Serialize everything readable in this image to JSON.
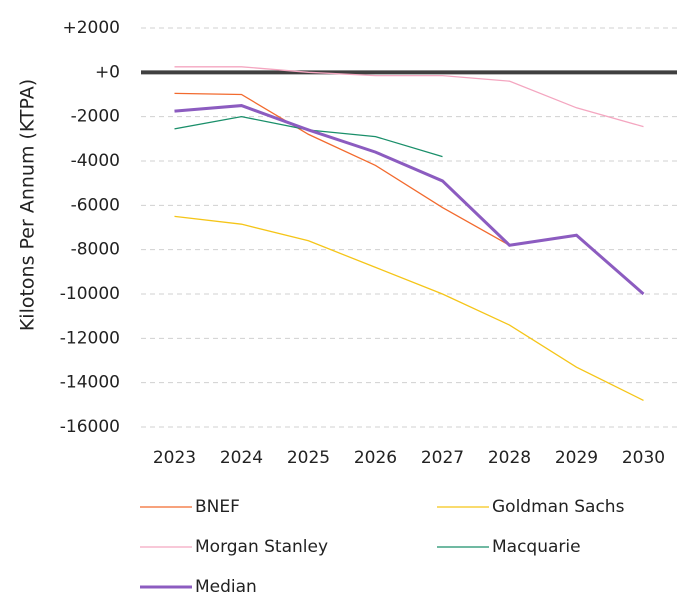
{
  "chart_data": {
    "type": "line",
    "y_label": "Kilotons Per Annum (KTPA)",
    "categories": [
      "2023",
      "2024",
      "2025",
      "2026",
      "2027",
      "2028",
      "2029",
      "2030"
    ],
    "series": [
      {
        "name": "BNEF",
        "color": "#f26a2e",
        "values": [
          -950,
          -1000,
          -2800,
          -4200,
          -6100,
          -7800,
          null,
          null
        ]
      },
      {
        "name": "Goldman Sachs",
        "color": "#f5c518",
        "values": [
          -6500,
          -6850,
          -7600,
          -8800,
          -10000,
          -11400,
          -13300,
          -14800
        ]
      },
      {
        "name": "Morgan Stanley",
        "color": "#f4a6c0",
        "values": [
          250,
          250,
          0,
          -150,
          -150,
          -400,
          -1600,
          -2450
        ]
      },
      {
        "name": "Macquarie",
        "color": "#1a8f6a",
        "values": [
          -2550,
          -2000,
          -2600,
          -2900,
          -3800,
          null,
          null,
          null
        ]
      },
      {
        "name": "Median",
        "color": "#8c5cc0",
        "values": [
          -1750,
          -1500,
          -2600,
          -3600,
          -4900,
          -7800,
          -7350,
          -10000
        ]
      }
    ],
    "ylim": [
      -16000,
      2000
    ],
    "yticks": [
      {
        "value": 2000,
        "label": "+2000"
      },
      {
        "value": 0,
        "label": "+0"
      },
      -2000,
      -4000,
      -6000,
      -8000,
      -10000,
      -12000,
      -14000,
      -16000
    ],
    "grid": true
  }
}
